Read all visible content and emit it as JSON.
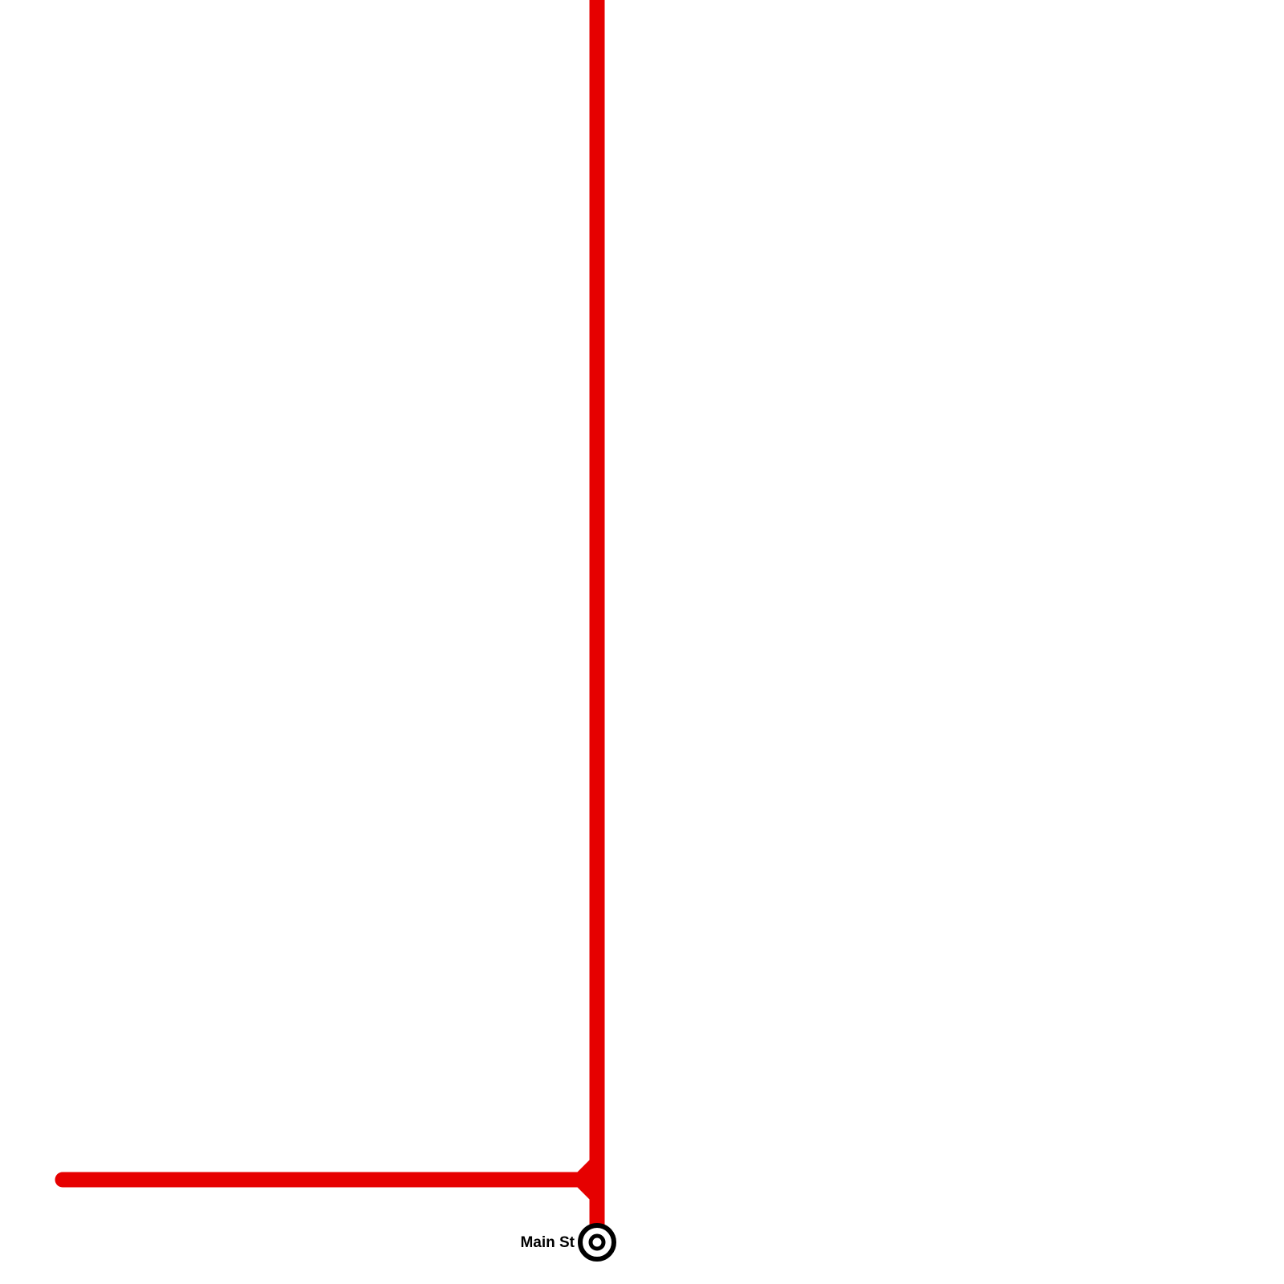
{
  "map": {
    "lines": [
      {
        "name": "red-line",
        "color": "#e60000"
      }
    ],
    "stations": [
      {
        "name": "Main St",
        "type": "interchange"
      }
    ]
  }
}
